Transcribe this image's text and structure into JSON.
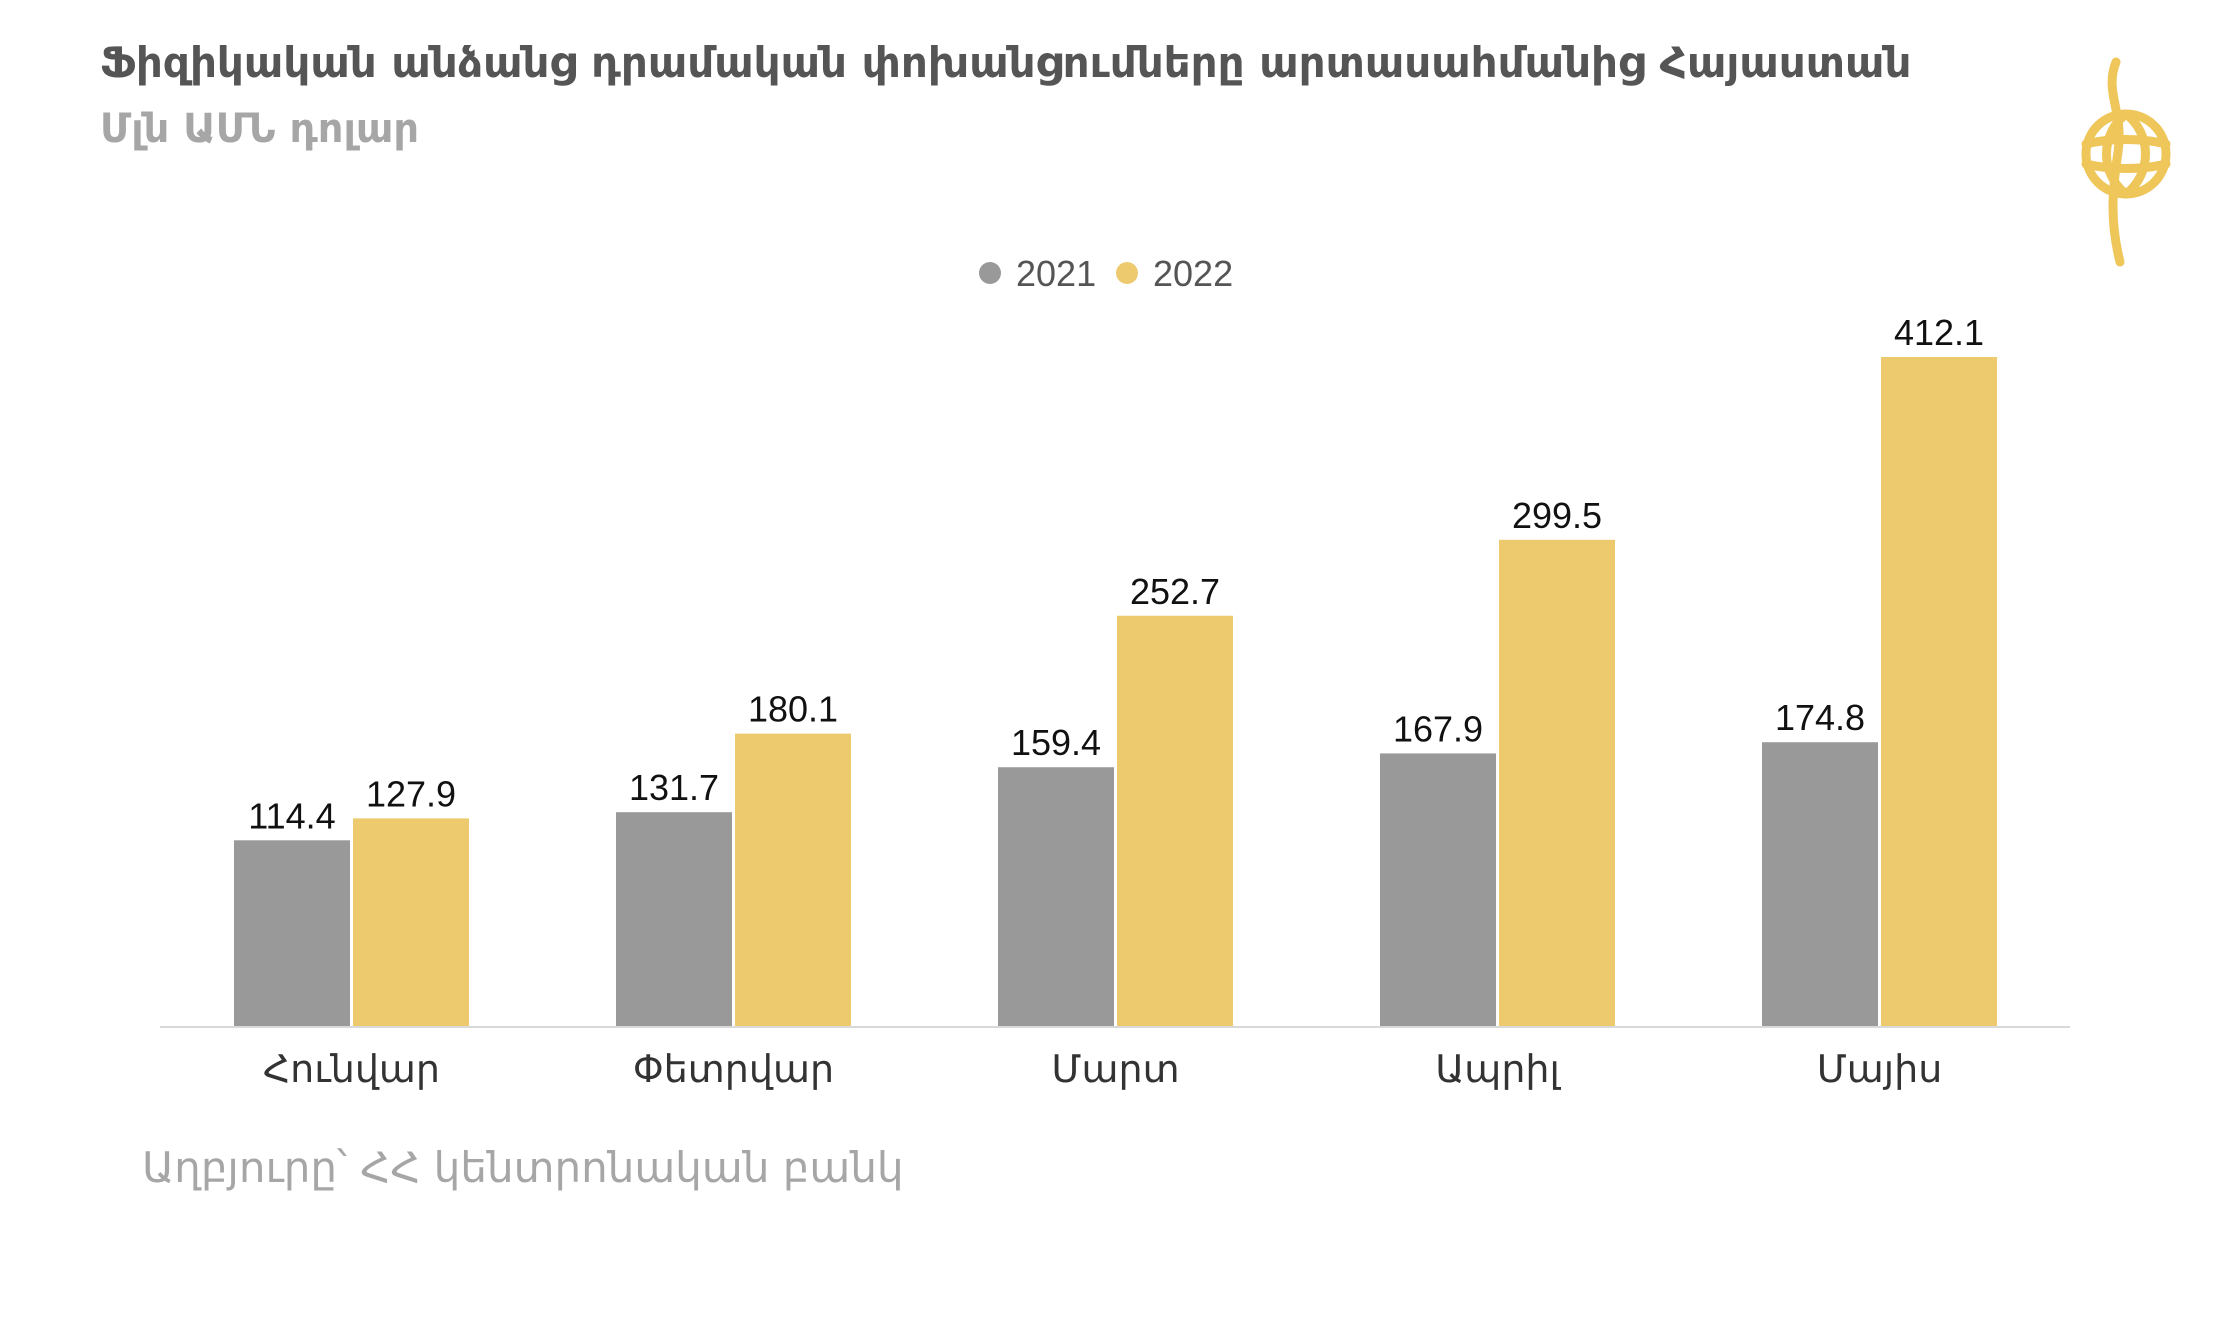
{
  "header": {
    "title": "Ֆիզիկական անձանց դրամական փոխանցումները արտասահմանից Հայաստան",
    "subtitle": "Մլն ԱՄՆ դոլար"
  },
  "source": "Աղբյուրը՝ ՀՀ կենտրոնական բանկ",
  "logo": {
    "icon": "globe-emblem-icon",
    "color": "#eec659"
  },
  "chart_data": {
    "type": "bar",
    "title": "Ֆիզիկական անձանց դրամական փոխանցումները արտասահմանից Հայաստան",
    "subtitle": "Մլն ԱՄՆ դոլար",
    "categories": [
      "Հունվար",
      "Փետրվար",
      "Մարտ",
      "Ապրիլ",
      "Մայիս"
    ],
    "series": [
      {
        "name": "2021",
        "color": "#999999",
        "values": [
          114.4,
          131.7,
          159.4,
          167.9,
          174.8
        ]
      },
      {
        "name": "2022",
        "color": "#eeca6f",
        "values": [
          127.9,
          180.1,
          252.7,
          299.5,
          412.1
        ]
      }
    ],
    "ylim": [
      0,
      412.1
    ],
    "grid": false,
    "legend": "top-center",
    "data_labels": true
  }
}
